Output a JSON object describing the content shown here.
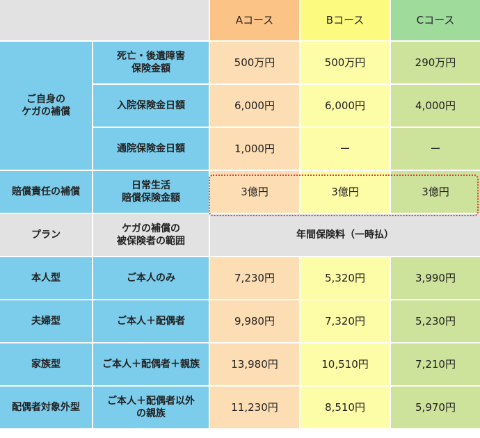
{
  "header": {
    "a": "Aコース",
    "b": "Bコース",
    "c": "Cコース"
  },
  "coverage": {
    "group_label": "ご自身の\nケガの補償",
    "rows": [
      {
        "label": "死亡・後遺障害\n保険金額",
        "a": "500万円",
        "b": "500万円",
        "c": "290万円"
      },
      {
        "label": "入院保険金日額",
        "a": "6,000円",
        "b": "6,000円",
        "c": "4,000円"
      },
      {
        "label": "通院保険金日額",
        "a": "1,000円",
        "b": "ー",
        "c": "ー"
      }
    ],
    "liability": {
      "group_label": "賠償責任の補償",
      "label": "日常生活\n賠償保険金額",
      "a": "3億円",
      "b": "3億円",
      "c": "3億円"
    }
  },
  "premium_header": {
    "plan": "プラン",
    "scope": "ケガの補償の\n被保険者の範囲",
    "premium": "年間保険料（一時払）"
  },
  "plans": [
    {
      "plan": "本人型",
      "scope": "ご本人のみ",
      "a": "7,230円",
      "b": "5,320円",
      "c": "3,990円"
    },
    {
      "plan": "夫婦型",
      "scope": "ご本人＋配偶者",
      "a": "9,980円",
      "b": "7,320円",
      "c": "5,230円"
    },
    {
      "plan": "家族型",
      "scope": "ご本人＋配偶者＋親族",
      "a": "13,980円",
      "b": "10,510円",
      "c": "7,210円"
    },
    {
      "plan": "配偶者対象外型",
      "scope": "ご本人＋配偶者以外\nの親族",
      "a": "11,230円",
      "b": "8,510円",
      "c": "5,970円"
    }
  ]
}
